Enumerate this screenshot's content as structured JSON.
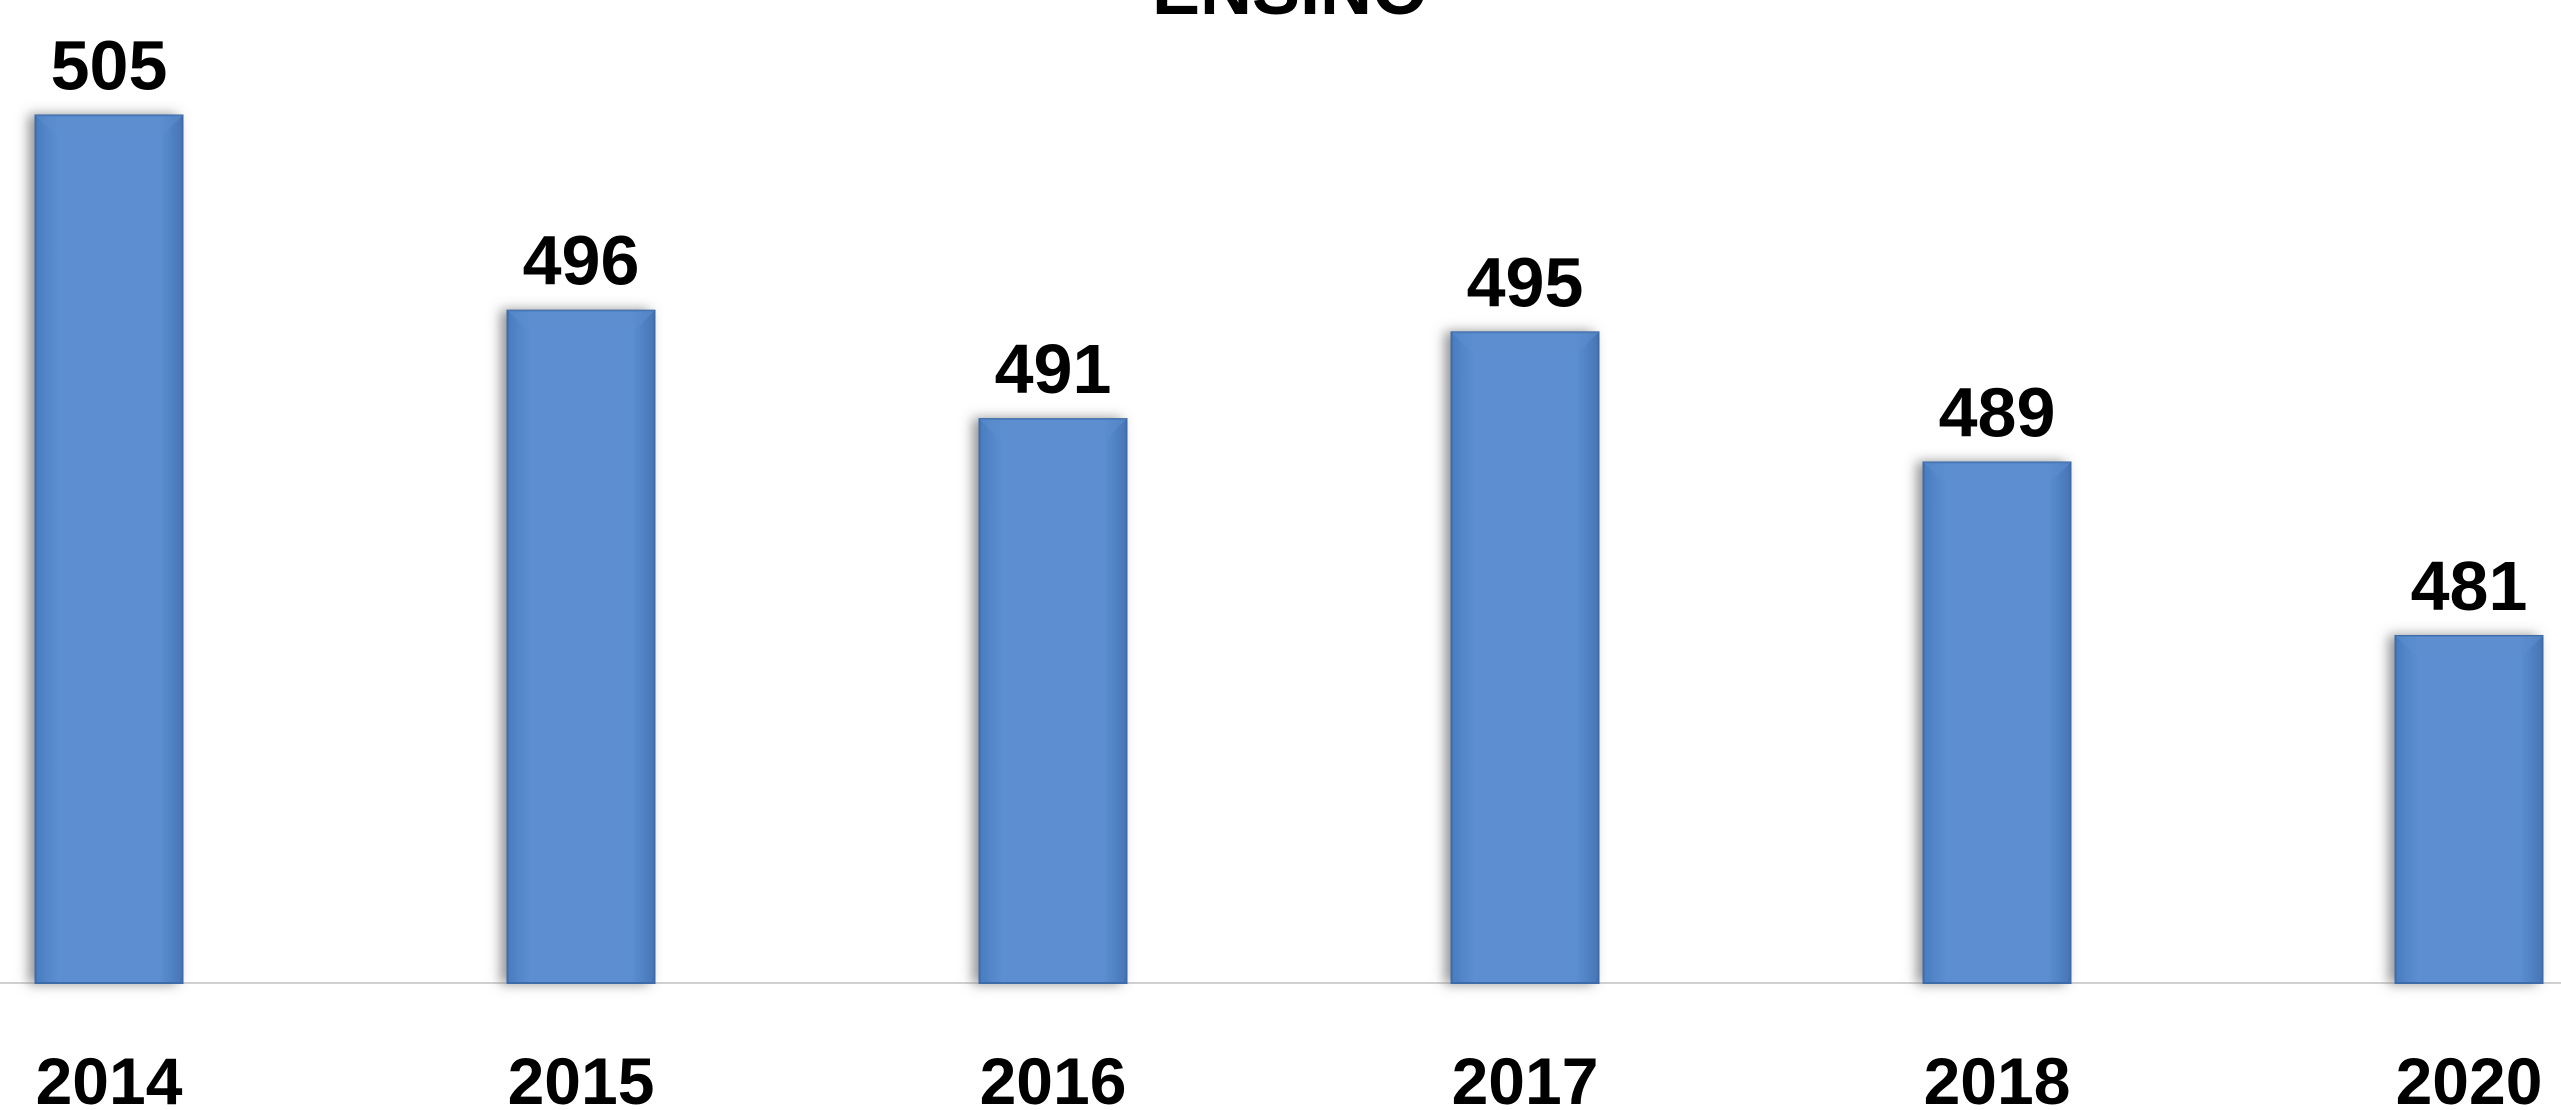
{
  "chart_data": {
    "type": "bar",
    "title": "ENSINO",
    "categories": [
      "2014",
      "2015",
      "2016",
      "2017",
      "2018",
      "2020"
    ],
    "values": [
      505,
      496,
      491,
      495,
      489,
      481
    ],
    "color": "#5b8dcf",
    "ylim": [
      465,
      510
    ]
  }
}
